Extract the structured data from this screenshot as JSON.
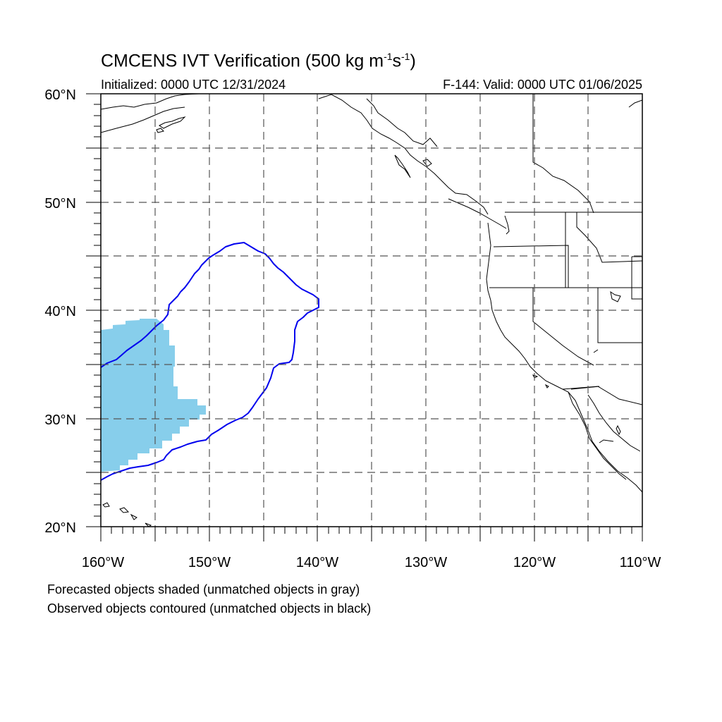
{
  "header": {
    "title_main": "CMCENS IVT Verification (500 kg m",
    "title_sup1": "-1",
    "title_mid": "s",
    "title_sup2": "-1",
    "title_end": ")",
    "initialized": "Initialized: 0000 UTC 12/31/2024",
    "valid": "F-144: Valid: 0000 UTC 01/06/2025"
  },
  "map": {
    "extent": {
      "lon_min": -160,
      "lon_max": -110,
      "lat_min": 20,
      "lat_max": 60
    },
    "lat_labels": [
      "20°N",
      "30°N",
      "40°N",
      "50°N",
      "60°N"
    ],
    "lon_labels": [
      "160°W",
      "150°W",
      "140°W",
      "130°W",
      "120°W",
      "110°W"
    ],
    "gridline_style": "dashed",
    "forecast_color": "#87ceeb",
    "observed_color": "#0000ee"
  },
  "footer": {
    "line1": "Forecasted objects shaded (unmatched objects in gray)",
    "line2": "Observed objects contoured (unmatched objects in black)"
  }
}
